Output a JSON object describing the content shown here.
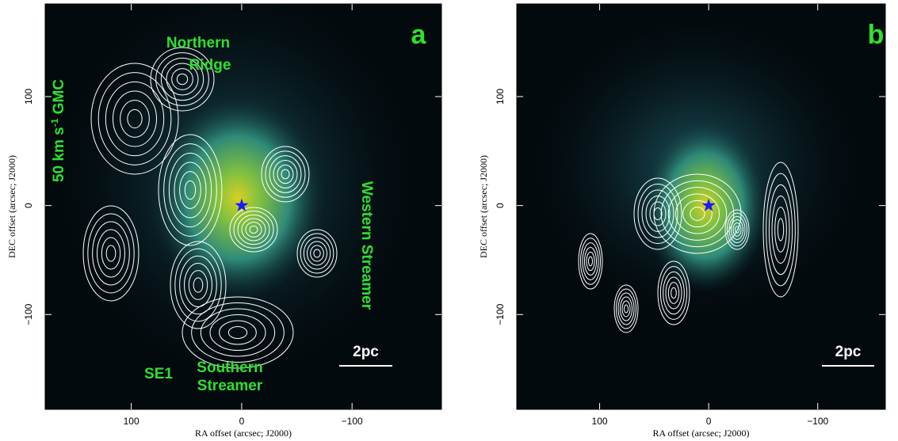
{
  "panels": [
    {
      "label": "a",
      "xlabel": "RA offset (arcsec; J2000)",
      "ylabel": "DEC offset (arcsec; J2000)",
      "xlim": [
        178,
        -181
      ],
      "ylim": [
        -187,
        185
      ],
      "xticks": [
        100,
        0,
        {
          "value": -100,
          "label": "−100"
        }
      ],
      "yticks": [
        {
          "value": -100,
          "label": "−100"
        },
        0,
        100
      ],
      "scalebar": "2pc",
      "annotations": [
        "Northern",
        "Ridge",
        "Western Streamer",
        "SE1",
        "Southern",
        "Streamer"
      ],
      "gmc_label": [
        "50 km s",
        "-1",
        " GMC"
      ]
    },
    {
      "label": "b",
      "xlabel": "RA offset (arcsec; J2000)",
      "ylabel": "DEC offset (arcsec; J2000)",
      "xlim": [
        176,
        -162
      ],
      "ylim": [
        -187,
        185
      ],
      "xticks": [
        100,
        0,
        {
          "value": -100,
          "label": "−100"
        }
      ],
      "yticks": [
        {
          "value": -100,
          "label": "−100"
        },
        0,
        100
      ],
      "scalebar": "2pc"
    }
  ]
}
